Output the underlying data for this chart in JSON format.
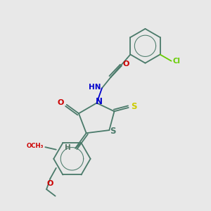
{
  "background_color": "#e8e8e8",
  "colors": {
    "bond": "#4a7a6a",
    "nitrogen": "#0000cc",
    "oxygen": "#cc0000",
    "sulfur": "#cccc00",
    "chlorine": "#66cc00",
    "hydrogen": "#557766"
  },
  "layout": {
    "xlim": [
      0,
      10
    ],
    "ylim": [
      0,
      10
    ]
  }
}
